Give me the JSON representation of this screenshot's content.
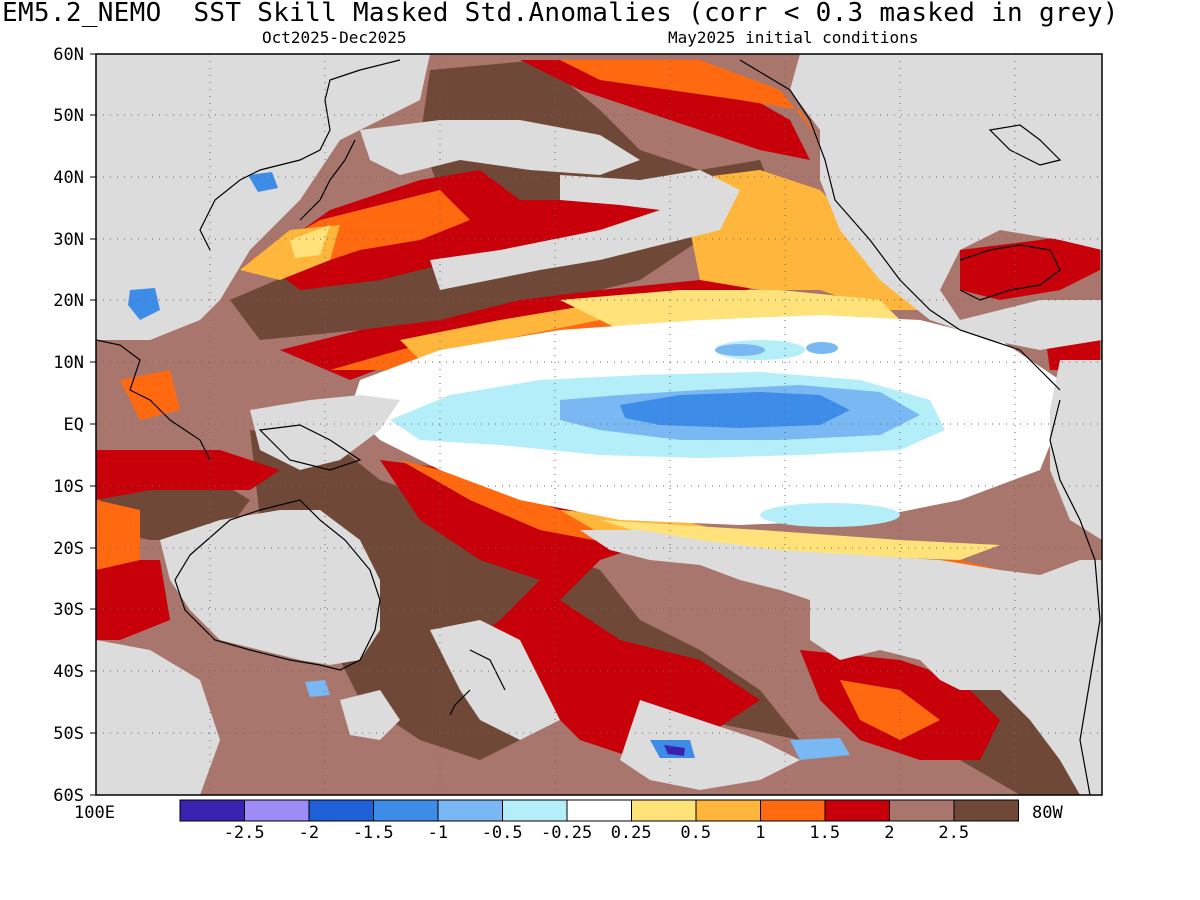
{
  "title": "EM5.2_NEMO  SST Skill Masked Std.Anomalies (corr < 0.3 masked in grey)",
  "subtitle_left": "Oct2025-Dec2025",
  "subtitle_right": "May2025 initial conditions",
  "lat_labels": [
    "60N",
    "50N",
    "40N",
    "30N",
    "20N",
    "10N",
    "EQ",
    "10S",
    "20S",
    "30S",
    "40S",
    "50S",
    "60S"
  ],
  "lon_left_label": "100E",
  "lon_right_label": "80W",
  "colorbar": {
    "colors": [
      "#3a22b0",
      "#9d8cf5",
      "#1f5fd8",
      "#3d8ce8",
      "#79b8f2",
      "#b4eef8",
      "#ffffff",
      "#ffe27a",
      "#ffb63c",
      "#ff6a10",
      "#c8000a",
      "#a8766c",
      "#704838"
    ],
    "labels": [
      "-2.5",
      "-2",
      "-1.5",
      "-1",
      "-0.5",
      "-0.25",
      "0.25",
      "0.5",
      "1",
      "1.5",
      "2",
      "2.5"
    ]
  },
  "colors": {
    "mask_grey": "#dcdcdc",
    "land_outline": "#000000"
  }
}
